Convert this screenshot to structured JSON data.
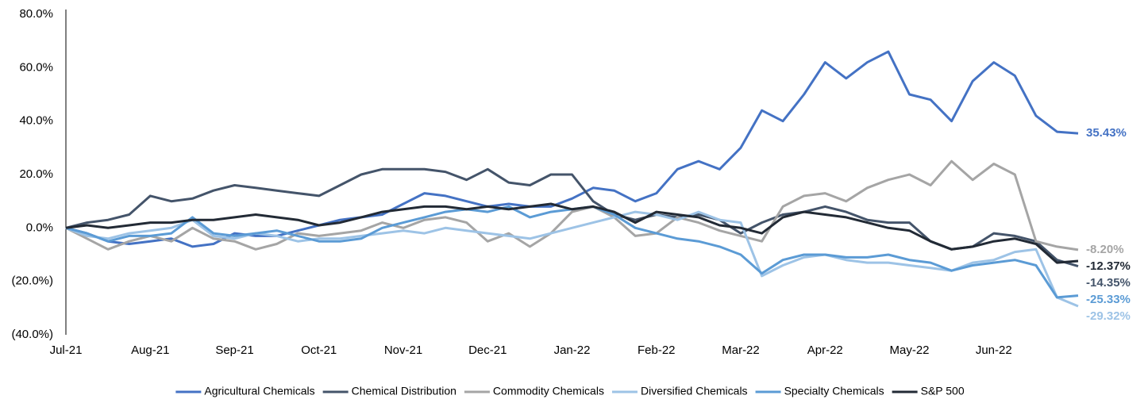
{
  "chart_data": {
    "type": "line",
    "categories": [
      "Jul-21",
      null,
      null,
      null,
      "Aug-21",
      null,
      null,
      null,
      "Sep-21",
      null,
      null,
      null,
      "Oct-21",
      null,
      null,
      null,
      "Nov-21",
      null,
      null,
      null,
      "Dec-21",
      null,
      null,
      null,
      "Jan-22",
      null,
      null,
      null,
      "Feb-22",
      null,
      null,
      null,
      "Mar-22",
      null,
      null,
      null,
      "Apr-22",
      null,
      null,
      null,
      "May-22",
      null,
      null,
      null,
      "Jun-22",
      null,
      null,
      null,
      null
    ],
    "ylim": [
      -40,
      80
    ],
    "yticks": [
      {
        "value": 80,
        "label": "80.0%"
      },
      {
        "value": 60,
        "label": "60.0%"
      },
      {
        "value": 40,
        "label": "40.0%"
      },
      {
        "value": 20,
        "label": "20.0%"
      },
      {
        "value": 0,
        "label": "0.0%"
      },
      {
        "value": -20,
        "label": "(20.0%)"
      },
      {
        "value": -40,
        "label": "(40.0%)"
      }
    ],
    "legend": "bottom",
    "series": [
      {
        "name": "Agricultural Chemicals",
        "color": "#4472c4",
        "end_label": "35.43%",
        "values": [
          0,
          -2,
          -5,
          -6,
          -5,
          -4,
          -7,
          -6,
          -2,
          -3,
          -3,
          -1,
          1,
          3,
          4,
          5,
          9,
          13,
          12,
          10,
          8,
          9,
          8,
          8,
          11,
          15,
          14,
          10,
          13,
          22,
          25,
          22,
          30,
          44,
          40,
          50,
          62,
          56,
          62,
          66,
          50,
          48,
          40,
          55,
          62,
          57,
          42,
          36,
          35.43
        ]
      },
      {
        "name": "Chemical Distribution",
        "color": "#44546a",
        "end_label": "-14.35%",
        "values": [
          0,
          2,
          3,
          5,
          12,
          10,
          11,
          14,
          16,
          15,
          14,
          13,
          12,
          16,
          20,
          22,
          22,
          22,
          21,
          18,
          22,
          17,
          16,
          20,
          20,
          10,
          5,
          3,
          5,
          4,
          5,
          3,
          -2,
          2,
          5,
          6,
          8,
          6,
          3,
          2,
          2,
          -5,
          -8,
          -7,
          -2,
          -3,
          -5,
          -12,
          -14.35
        ]
      },
      {
        "name": "Commodity Chemicals",
        "color": "#a5a5a5",
        "end_label": "-8.20%",
        "values": [
          0,
          -4,
          -8,
          -5,
          -3,
          -5,
          0,
          -4,
          -5,
          -8,
          -6,
          -2,
          -3,
          -2,
          -1,
          2,
          0,
          3,
          4,
          2,
          -5,
          -2,
          -7,
          -2,
          6,
          8,
          4,
          -3,
          -2,
          4,
          2,
          -1,
          -3,
          -5,
          8,
          12,
          13,
          10,
          15,
          18,
          20,
          16,
          25,
          18,
          24,
          20,
          -5,
          -7,
          -8.2
        ]
      },
      {
        "name": "Diversified Chemicals",
        "color": "#9dc3e6",
        "end_label": "-29.32%",
        "values": [
          0,
          -3,
          -4,
          -2,
          -1,
          0,
          3,
          -3,
          -4,
          -2,
          -3,
          -5,
          -4,
          -4,
          -3,
          -2,
          -1,
          -2,
          0,
          -1,
          -2,
          -3,
          -4,
          -2,
          0,
          2,
          4,
          6,
          5,
          3,
          6,
          3,
          2,
          -18,
          -14,
          -11,
          -10,
          -12,
          -13,
          -13,
          -14,
          -15,
          -16,
          -13,
          -12,
          -9,
          -8,
          -26,
          -29.32
        ]
      },
      {
        "name": "Specialty Chemicals",
        "color": "#5b9bd5",
        "end_label": "-25.33%",
        "values": [
          0,
          -2,
          -5,
          -3,
          -3,
          -2,
          4,
          -2,
          -3,
          -2,
          -1,
          -3,
          -5,
          -5,
          -4,
          0,
          2,
          4,
          6,
          7,
          6,
          8,
          4,
          6,
          7,
          8,
          5,
          0,
          -2,
          -4,
          -5,
          -7,
          -10,
          -17,
          -12,
          -10,
          -10,
          -11,
          -11,
          -10,
          -12,
          -13,
          -16,
          -14,
          -13,
          -12,
          -14,
          -26,
          -25.33
        ]
      },
      {
        "name": "S&P 500",
        "color": "#222a35",
        "end_label": "-12.37%",
        "values": [
          0,
          1,
          0,
          1,
          2,
          2,
          3,
          3,
          4,
          5,
          4,
          3,
          1,
          2,
          4,
          6,
          7,
          8,
          8,
          7,
          8,
          7,
          8,
          9,
          7,
          8,
          6,
          2,
          6,
          5,
          4,
          1,
          0,
          -2,
          4,
          6,
          5,
          4,
          2,
          0,
          -1,
          -5,
          -8,
          -7,
          -5,
          -4,
          -6,
          -13,
          -12.37
        ]
      }
    ]
  }
}
